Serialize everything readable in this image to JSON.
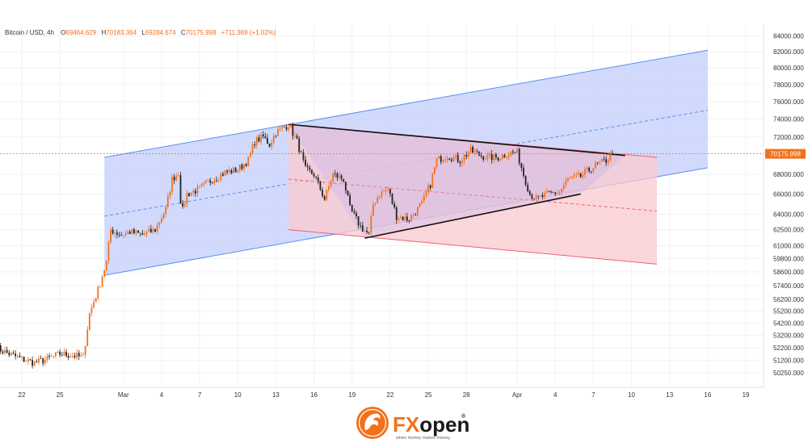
{
  "header": {
    "symbol": "Bitcoin / USD, 4h",
    "o_label": "O",
    "o_value": "69464.629",
    "h_label": "H",
    "h_value": "70183.364",
    "l_label": "L",
    "l_value": "69284.674",
    "c_label": "C",
    "c_value": "70175.998",
    "change": "+711.369 (+1.02%)"
  },
  "brand": {
    "name_fx": "FX",
    "name_open": "open",
    "registered": "®",
    "tagline": "when money makes money"
  },
  "colors": {
    "up": "#f2711c",
    "down": "#222222",
    "channel_fill": "#c9d3fb",
    "channel_line": "#5b8ff0",
    "triangle_fill": "#c7b5ec",
    "red_fill": "#f9c9cf",
    "red_line": "#f06070",
    "price_tag": "#f2711c"
  },
  "chart_data": {
    "type": "candlestick",
    "title": "Bitcoin / USD, 4h",
    "y_ticks": [
      84000,
      82000,
      80000,
      78000,
      76000,
      74000,
      72000,
      68000,
      66000,
      64000,
      62500,
      61000,
      59800,
      58600,
      57400,
      56200,
      55200,
      54200,
      53200,
      52200,
      51200,
      50250
    ],
    "y_tick_labels": [
      "84000.000",
      "82000.000",
      "80000.000",
      "78000.000",
      "76000.000",
      "74000.000",
      "72000.000",
      "68000.000",
      "66000.000",
      "64000.000",
      "62500.000",
      "61000.000",
      "59800.000",
      "58600.000",
      "57400.000",
      "56200.000",
      "55200.000",
      "54200.000",
      "53200.000",
      "52200.000",
      "51200.000",
      "50250.000"
    ],
    "y_scale": "log",
    "ylim": [
      49500,
      85000
    ],
    "last_price": 70175.998,
    "last_price_label": "70175.998",
    "x_labels": [
      "22",
      "25",
      "Mar",
      "4",
      "7",
      "10",
      "13",
      "16",
      "19",
      "22",
      "25",
      "28",
      "Apr",
      "4",
      "7",
      "10",
      "13",
      "16",
      "19"
    ],
    "x_label_dates": [
      "2024-02-22",
      "2024-02-25",
      "2024-03-01",
      "2024-03-04",
      "2024-03-07",
      "2024-03-10",
      "2024-03-13",
      "2024-03-16",
      "2024-03-19",
      "2024-03-22",
      "2024-03-25",
      "2024-03-28",
      "2024-04-01",
      "2024-04-04",
      "2024-04-07",
      "2024-04-10",
      "2024-04-13",
      "2024-04-16",
      "2024-04-19"
    ],
    "price_path": [
      [
        "2024-02-20T00:00",
        52200
      ],
      [
        "2024-02-21T00:00",
        51700
      ],
      [
        "2024-02-22T00:00",
        51300
      ],
      [
        "2024-02-23T00:00",
        51000
      ],
      [
        "2024-02-24T00:00",
        51300
      ],
      [
        "2024-02-25T00:00",
        51700
      ],
      [
        "2024-02-26T00:00",
        51600
      ],
      [
        "2024-02-26T20:00",
        51400
      ],
      [
        "2024-02-27T08:00",
        55000
      ],
      [
        "2024-02-28T00:00",
        57000
      ],
      [
        "2024-02-28T16:00",
        59500
      ],
      [
        "2024-02-29T00:00",
        62500
      ],
      [
        "2024-02-29T20:00",
        62000
      ],
      [
        "2024-03-01T12:00",
        62300
      ],
      [
        "2024-03-02T12:00",
        62000
      ],
      [
        "2024-03-03T12:00",
        62500
      ],
      [
        "2024-03-04T08:00",
        64500
      ],
      [
        "2024-03-04T20:00",
        67500
      ],
      [
        "2024-03-05T08:00",
        68200
      ],
      [
        "2024-03-05T14:00",
        64000
      ],
      [
        "2024-03-06T00:00",
        66000
      ],
      [
        "2024-03-07T00:00",
        66500
      ],
      [
        "2024-03-08T00:00",
        67500
      ],
      [
        "2024-03-09T00:00",
        68200
      ],
      [
        "2024-03-10T00:00",
        68500
      ],
      [
        "2024-03-10T20:00",
        69500
      ],
      [
        "2024-03-11T08:00",
        71500
      ],
      [
        "2024-03-12T00:00",
        72000
      ],
      [
        "2024-03-12T12:00",
        71200
      ],
      [
        "2024-03-13T00:00",
        72500
      ],
      [
        "2024-03-14T00:00",
        73400
      ],
      [
        "2024-03-14T16:00",
        71500
      ],
      [
        "2024-03-15T08:00",
        68500
      ],
      [
        "2024-03-16T00:00",
        68000
      ],
      [
        "2024-03-16T20:00",
        65500
      ],
      [
        "2024-03-17T12:00",
        68000
      ],
      [
        "2024-03-18T08:00",
        67500
      ],
      [
        "2024-03-18T20:00",
        64500
      ],
      [
        "2024-03-19T16:00",
        62800
      ],
      [
        "2024-03-20T08:00",
        62000
      ],
      [
        "2024-03-20T16:00",
        65000
      ],
      [
        "2024-03-21T04:00",
        66000
      ],
      [
        "2024-03-21T20:00",
        66500
      ],
      [
        "2024-03-22T12:00",
        63800
      ],
      [
        "2024-03-23T12:00",
        63500
      ],
      [
        "2024-03-24T12:00",
        65000
      ],
      [
        "2024-03-25T04:00",
        67000
      ],
      [
        "2024-03-25T16:00",
        69500
      ],
      [
        "2024-03-26T12:00",
        70000
      ],
      [
        "2024-03-27T12:00",
        69500
      ],
      [
        "2024-03-28T08:00",
        70500
      ],
      [
        "2024-03-29T12:00",
        69800
      ],
      [
        "2024-03-30T12:00",
        69800
      ],
      [
        "2024-03-31T12:00",
        70300
      ],
      [
        "2024-04-01T00:00",
        70300
      ],
      [
        "2024-04-01T12:00",
        68000
      ],
      [
        "2024-04-02T00:00",
        66000
      ],
      [
        "2024-04-02T12:00",
        65500
      ],
      [
        "2024-04-03T12:00",
        66000
      ],
      [
        "2024-04-04T08:00",
        66200
      ],
      [
        "2024-04-05T00:00",
        67500
      ],
      [
        "2024-04-06T00:00",
        67800
      ],
      [
        "2024-04-07T00:00",
        68800
      ],
      [
        "2024-04-08T00:00",
        69464.629
      ],
      [
        "2024-04-08T12:00",
        70175.998
      ]
    ],
    "overlays": [
      {
        "name": "ascending channel",
        "type": "parallel-channel",
        "start": "2024-02-28T12:00",
        "end": "2024-04-16T00:00",
        "upper": [
          69800,
          82200
        ],
        "lower": [
          58300,
          68700
        ],
        "mid": [
          63800,
          75000
        ]
      },
      {
        "name": "descending channel",
        "type": "parallel-channel",
        "start": "2024-03-14T00:00",
        "end": "2024-04-12T00:00",
        "upper": [
          73400,
          69800
        ],
        "lower": [
          62500,
          59300
        ],
        "mid": [
          67500,
          64300
        ]
      },
      {
        "name": "triangle",
        "type": "triangle",
        "start": "2024-03-14T00:00",
        "end": "2024-04-09T12:00",
        "upper": [
          73400,
          70000
        ],
        "lower_start": [
          "2024-03-20T00:00",
          61700
        ],
        "lower_end": [
          "2024-04-06T00:00",
          66000
        ]
      }
    ]
  }
}
